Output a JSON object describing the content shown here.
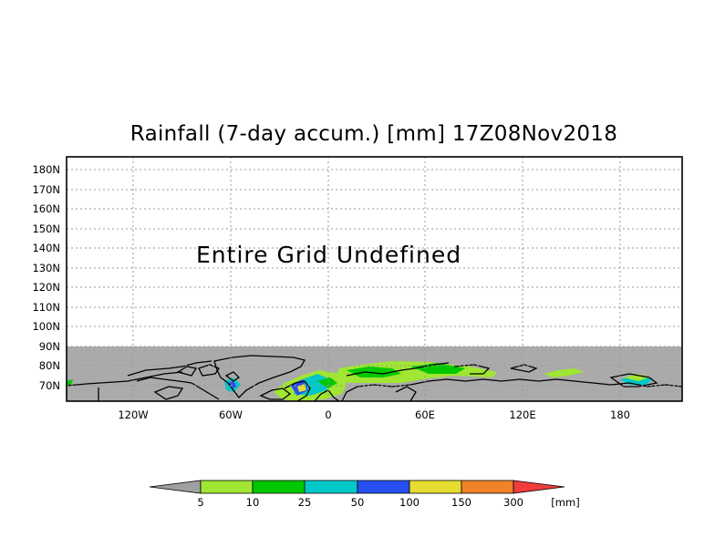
{
  "title": "Rainfall (7-day accum.) [mm] 17Z08Nov2018",
  "undefined_message": "Entire Grid Undefined",
  "lat_ticks": [
    "180N",
    "170N",
    "160N",
    "150N",
    "140N",
    "130N",
    "120N",
    "110N",
    "100N",
    "90N",
    "80N",
    "70N"
  ],
  "lon_ticks": [
    "120W",
    "60W",
    "0",
    "60E",
    "120E",
    "180"
  ],
  "colorbar": {
    "thresholds": [
      "5",
      "10",
      "25",
      "50",
      "100",
      "150",
      "300"
    ],
    "unit": "[mm]",
    "colors": [
      "#a0a0a0",
      "#a0e632",
      "#00c800",
      "#00c8c8",
      "#2850f0",
      "#e6dc32",
      "#f08228",
      "#f03c3c"
    ]
  },
  "colors": {
    "undefined_region": "#ffffff",
    "land_region": "#aaaaaa",
    "coastline": "#000000",
    "grid": "#9a9a9a"
  }
}
